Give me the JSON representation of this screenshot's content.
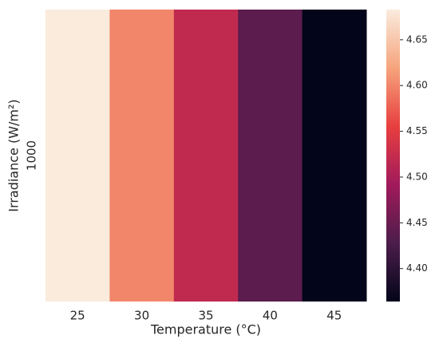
{
  "chart_data": {
    "type": "heatmap",
    "xlabel": "Temperature (°C)",
    "ylabel": "Irradiance (W/m²)",
    "categories": [
      "25",
      "30",
      "35",
      "40",
      "45"
    ],
    "rows": [
      "1000"
    ],
    "values": [
      [
        4.683,
        4.6,
        4.52,
        4.44,
        4.364
      ]
    ],
    "colorscale": [
      "#03051a",
      "#4c1d4b",
      "#a11a5b",
      "#e83f3f",
      "#f6a47c",
      "#faebdd"
    ],
    "zlim": [
      4.364,
      4.683
    ],
    "zticks": [
      {
        "value": 4.4,
        "label": "4.40"
      },
      4.45,
      {
        "value": 4.5,
        "label": "4.50"
      },
      4.55,
      {
        "value": 4.6,
        "label": "4.60"
      },
      4.65
    ]
  }
}
